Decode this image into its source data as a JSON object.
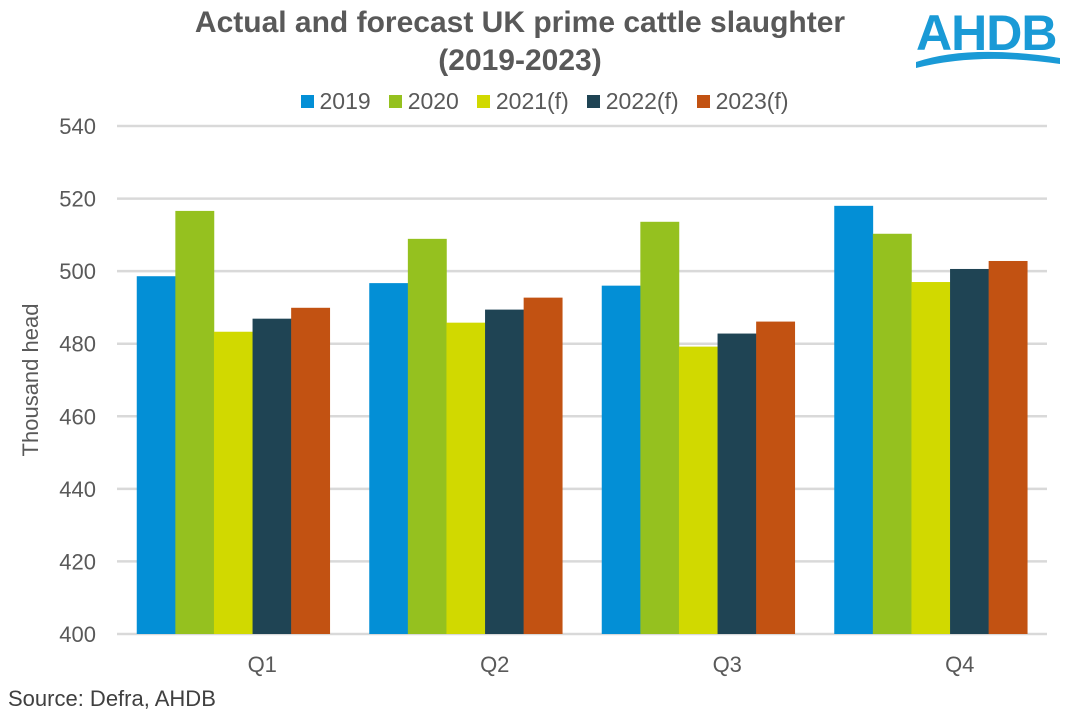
{
  "chart_data": {
    "type": "bar",
    "title": "Actual and forecast UK prime cattle slaughter",
    "subtitle": "(2019-2023)",
    "categories": [
      "Q1",
      "Q2",
      "Q3",
      "Q4"
    ],
    "series": [
      {
        "name": "2019",
        "color": "#038fd6",
        "values": [
          498.6,
          496.7,
          496.0,
          518.0
        ]
      },
      {
        "name": "2020",
        "color": "#95c11f",
        "values": [
          516.6,
          508.9,
          513.6,
          510.3
        ]
      },
      {
        "name": "2021(f)",
        "color": "#d1d900",
        "values": [
          483.3,
          485.8,
          479.2,
          497.0
        ]
      },
      {
        "name": "2022(f)",
        "color": "#1f4454",
        "values": [
          486.9,
          489.4,
          482.8,
          500.6
        ]
      },
      {
        "name": "2023(f)",
        "color": "#c25212",
        "values": [
          489.9,
          492.7,
          486.1,
          502.8
        ]
      }
    ],
    "xlabel": "",
    "ylabel": "Thousand head",
    "ylim": [
      400,
      540
    ],
    "yticks": [
      400,
      420,
      440,
      460,
      480,
      500,
      520,
      540
    ],
    "grid": true,
    "legend_position": "top"
  },
  "source": "Source: Defra, AHDB",
  "logo_text": "AHDB"
}
